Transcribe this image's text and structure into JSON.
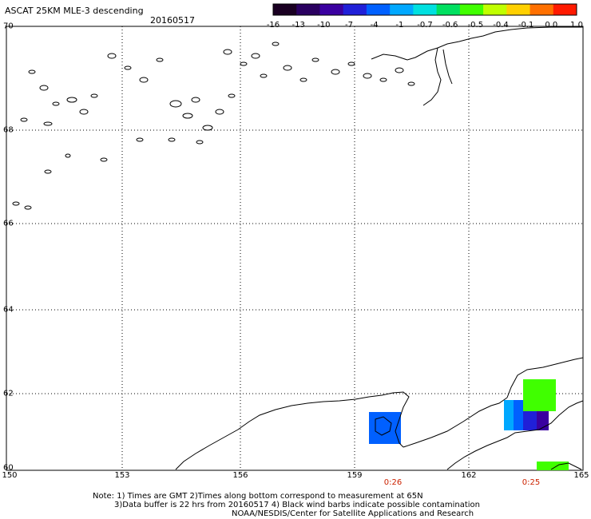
{
  "header": {
    "title": "ASCAT 25KM MLE-3 descending",
    "date": "20160517"
  },
  "colorbar": {
    "labels": [
      "-16",
      "-13",
      "-10",
      "-7",
      "-4",
      "-1",
      "-0.7",
      "-0.6",
      "-0.5",
      "-0.4",
      "-0.1",
      "0.0",
      "1.0"
    ],
    "colors": [
      "#1a0022",
      "#2a0060",
      "#3a00a0",
      "#2020d8",
      "#0060ff",
      "#00a8ff",
      "#00e0e0",
      "#00e060",
      "#40ff00",
      "#c0ff00",
      "#ffd000",
      "#ff7000",
      "#ff1a00"
    ]
  },
  "map": {
    "lat_labels": [
      "70",
      "68",
      "66",
      "64",
      "62",
      "60"
    ],
    "lon_labels": [
      "150",
      "153",
      "156",
      "159",
      "162",
      "165"
    ],
    "time_labels": [
      "0:26",
      "0:25"
    ],
    "coast_color": "#000000",
    "grid_color": "#000000"
  },
  "footer": {
    "line1": "Note: 1) Times are GMT 2)Times along bottom correspond to measurement at 65N",
    "line2": "3)Data buffer is 22 hrs from 20160517 4) Black wind barbs indicate possible contamination",
    "line3": "NOAA/NESDIS/Center for Satellite Applications and Research"
  }
}
